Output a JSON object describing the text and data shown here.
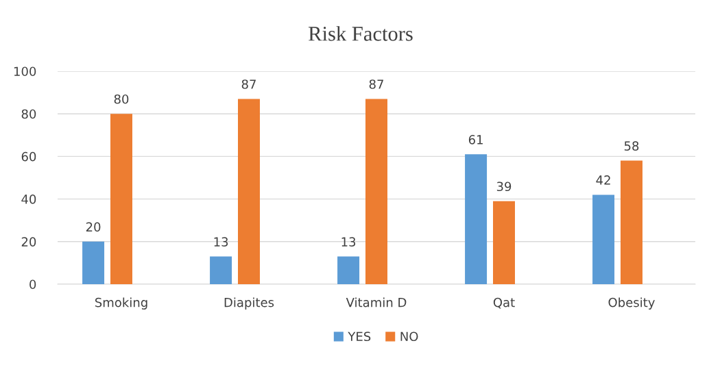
{
  "chart_data": {
    "type": "bar",
    "title": "Risk Factors",
    "categories": [
      "Smoking",
      "Diapites",
      "Vitamin D",
      "Qat",
      "Obesity"
    ],
    "series": [
      {
        "name": "YES",
        "color": "#5b9bd5",
        "values": [
          20,
          13,
          13,
          61,
          42
        ]
      },
      {
        "name": "NO",
        "color": "#ed7d31",
        "values": [
          80,
          87,
          87,
          39,
          58
        ]
      }
    ],
    "ylim": [
      0,
      100
    ],
    "yticks": [
      0,
      20,
      40,
      60,
      80,
      100
    ],
    "grid": "y",
    "legend": "bottom",
    "data_labels": true
  }
}
